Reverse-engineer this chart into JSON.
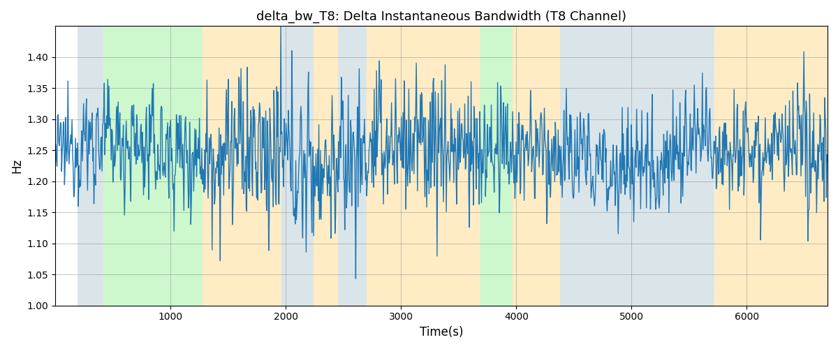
{
  "title": "delta_bw_T8: Delta Instantaneous Bandwidth (T8 Channel)",
  "xlabel": "Time(s)",
  "ylabel": "Hz",
  "xlim": [
    0,
    6700
  ],
  "ylim": [
    1.0,
    1.45
  ],
  "yticks": [
    1.0,
    1.05,
    1.1,
    1.15,
    1.2,
    1.25,
    1.3,
    1.35,
    1.4
  ],
  "xticks": [
    1000,
    2000,
    3000,
    4000,
    5000,
    6000
  ],
  "background_bands": [
    {
      "xmin": 190,
      "xmax": 420,
      "color": "#AEC6CF",
      "alpha": 0.45
    },
    {
      "xmin": 420,
      "xmax": 1280,
      "color": "#90EE90",
      "alpha": 0.45
    },
    {
      "xmin": 1280,
      "xmax": 1960,
      "color": "#FFD580",
      "alpha": 0.45
    },
    {
      "xmin": 1960,
      "xmax": 2240,
      "color": "#AEC6CF",
      "alpha": 0.45
    },
    {
      "xmin": 2240,
      "xmax": 2450,
      "color": "#FFD580",
      "alpha": 0.45
    },
    {
      "xmin": 2450,
      "xmax": 2700,
      "color": "#AEC6CF",
      "alpha": 0.45
    },
    {
      "xmin": 2700,
      "xmax": 3680,
      "color": "#FFD580",
      "alpha": 0.45
    },
    {
      "xmin": 3680,
      "xmax": 3970,
      "color": "#90EE90",
      "alpha": 0.45
    },
    {
      "xmin": 3970,
      "xmax": 4380,
      "color": "#FFD580",
      "alpha": 0.45
    },
    {
      "xmin": 4380,
      "xmax": 5720,
      "color": "#AEC6CF",
      "alpha": 0.45
    },
    {
      "xmin": 5720,
      "xmax": 6700,
      "color": "#FFD580",
      "alpha": 0.45
    }
  ],
  "line_color": "#1f77b4",
  "line_width": 1.0,
  "seed": 12345,
  "n_points": 1340,
  "base_mean": 1.245,
  "base_noise": 0.055
}
